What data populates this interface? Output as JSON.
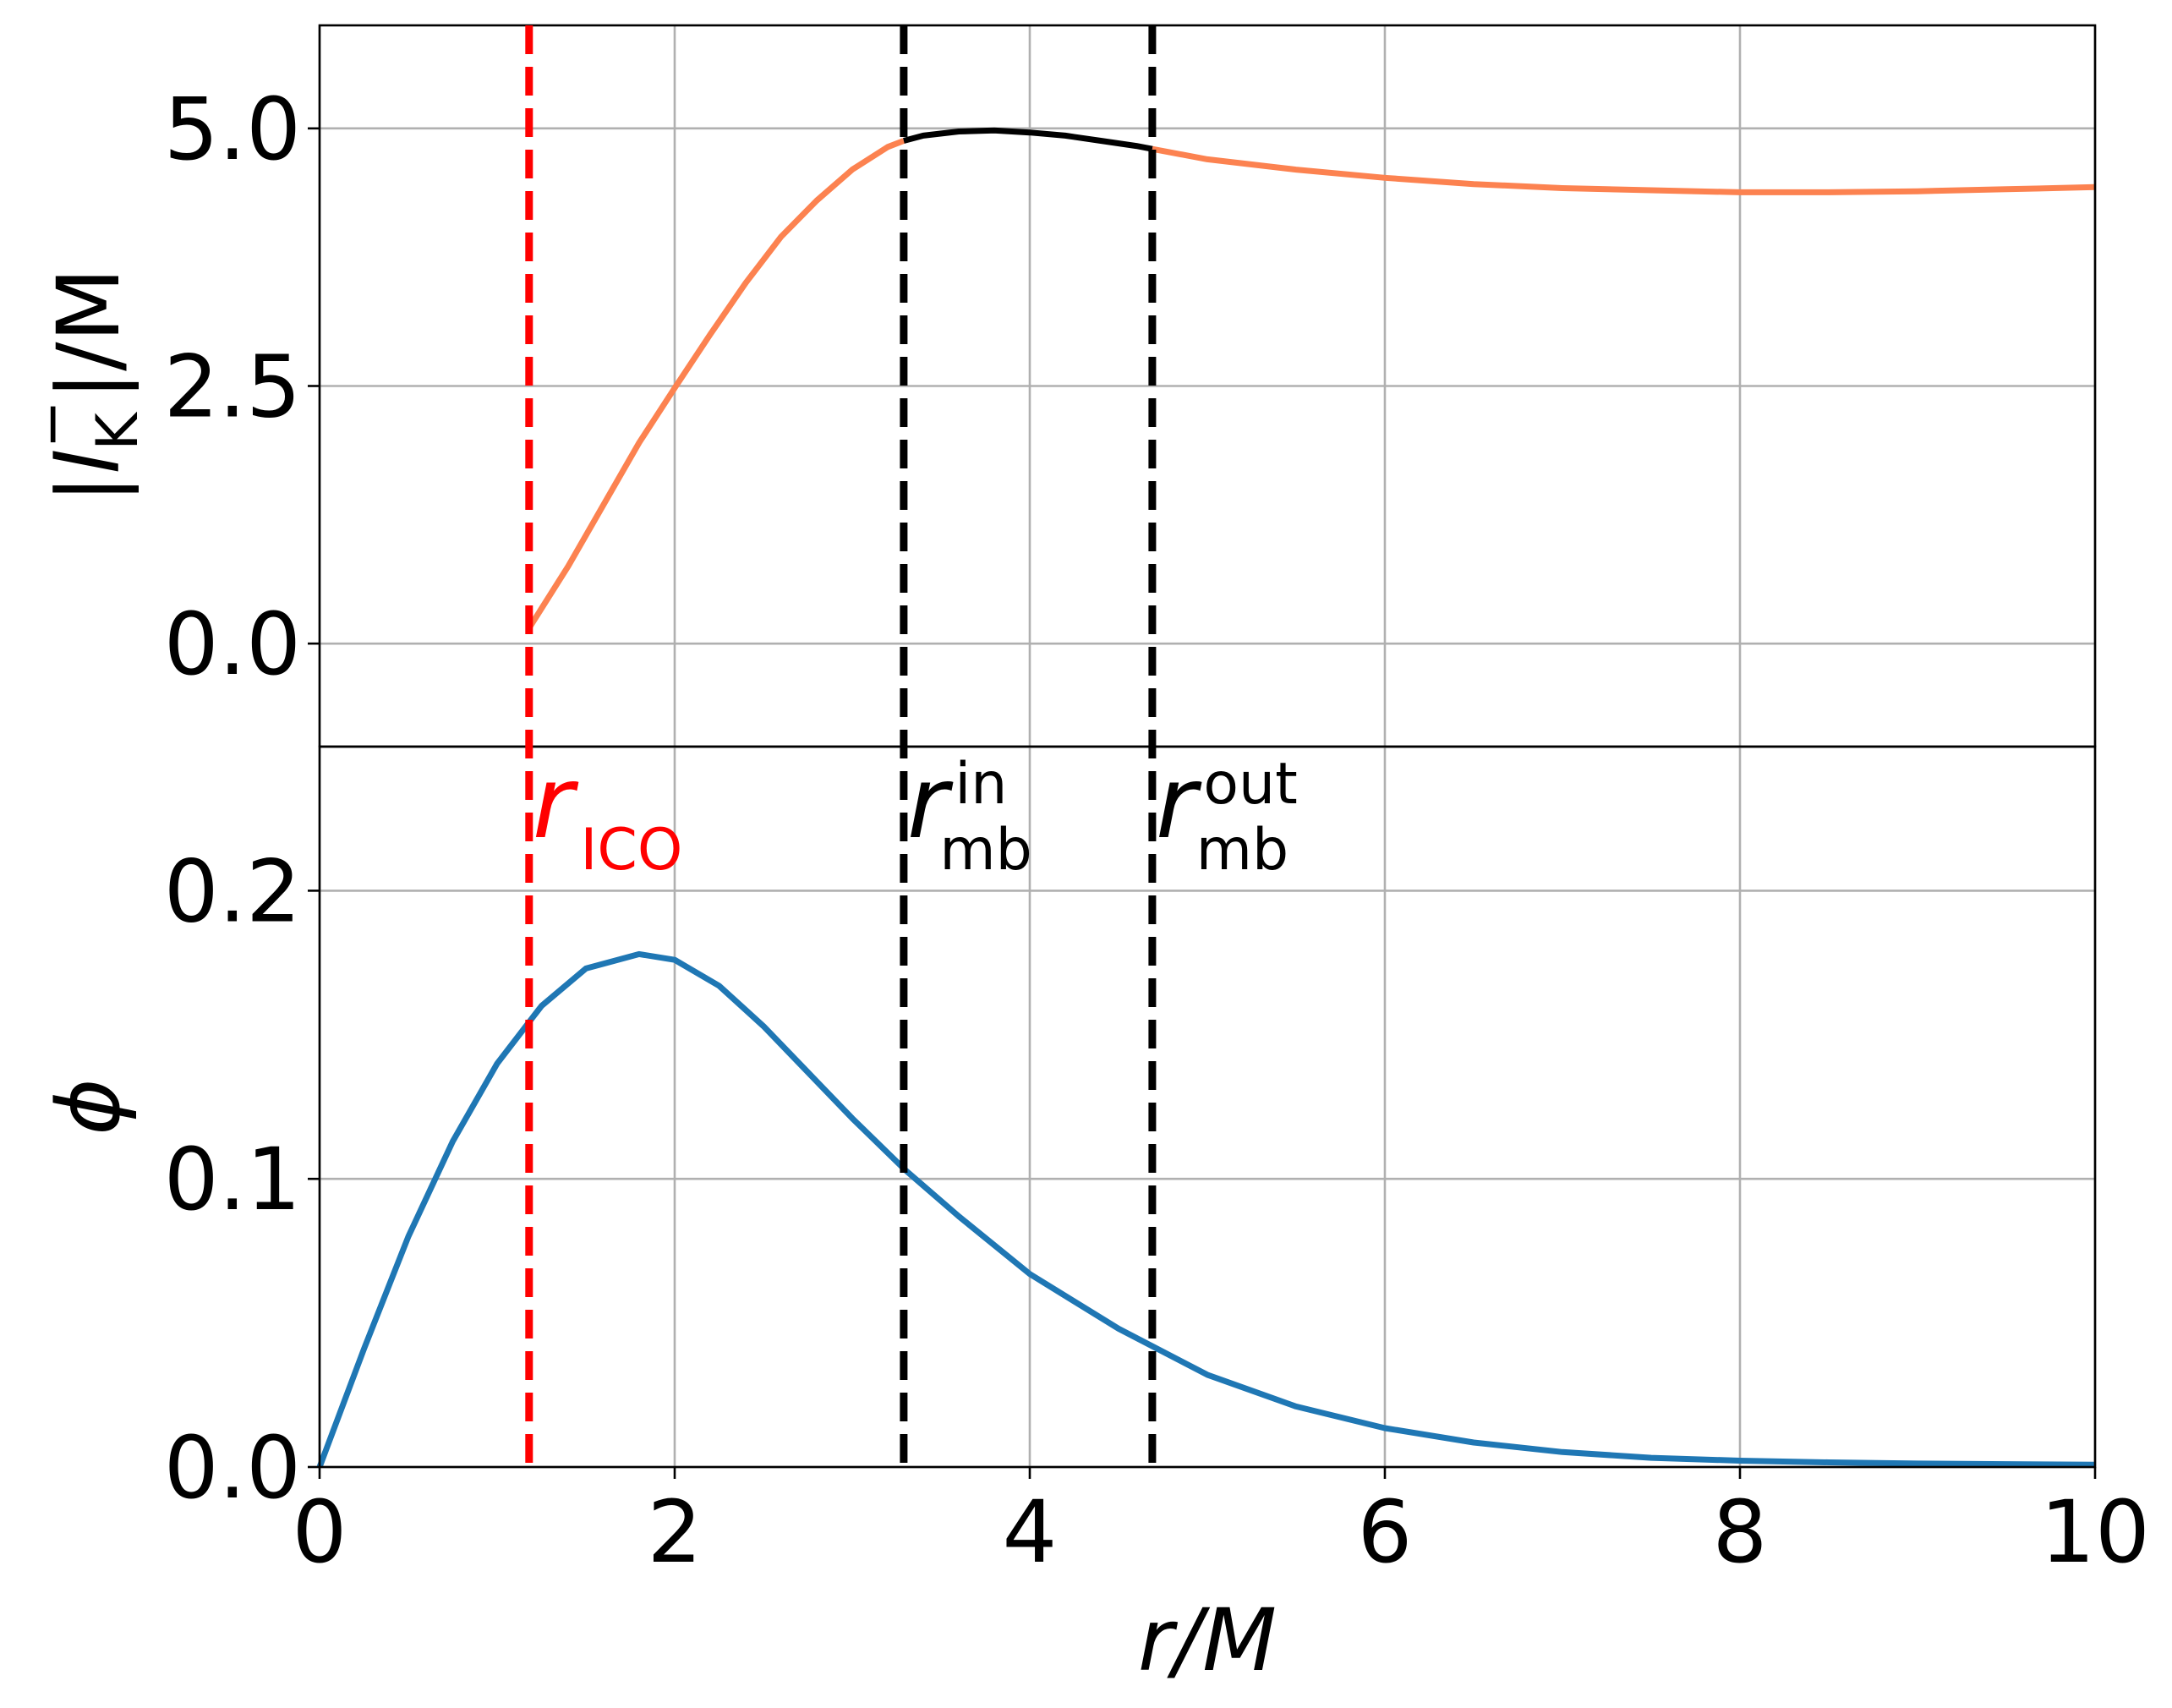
{
  "chart_data": [
    {
      "panel": "top",
      "type": "line",
      "ylabel": "|l_K^-|/M",
      "ylabel_parts": {
        "left_bar": "|",
        "symbol": "l",
        "sub": "K",
        "sup": "−",
        "right": "|/M"
      },
      "ylim": [
        -1.0,
        6.0
      ],
      "xlim": [
        0,
        10
      ],
      "yticks": [
        0.0,
        2.5,
        5.0
      ],
      "ytick_labels": [
        "0.0",
        "2.5",
        "5.0"
      ],
      "grid": true,
      "series": [
        {
          "color": "#fc8250",
          "x": [
            1.18,
            1.4,
            1.6,
            1.8,
            2.0,
            2.2,
            2.4,
            2.6,
            2.8,
            3.0,
            3.2,
            3.29
          ],
          "y": [
            0.15,
            0.75,
            1.35,
            1.95,
            2.48,
            3.0,
            3.5,
            3.95,
            4.3,
            4.6,
            4.82,
            4.88
          ]
        },
        {
          "color": "#000000",
          "x": [
            3.29,
            3.4,
            3.6,
            3.8,
            4.0,
            4.2,
            4.4,
            4.6,
            4.69
          ],
          "y": [
            4.88,
            4.93,
            4.97,
            4.98,
            4.96,
            4.93,
            4.88,
            4.83,
            4.8
          ]
        },
        {
          "color": "#fc8250",
          "x": [
            4.69,
            5.0,
            5.5,
            6.0,
            6.5,
            7.0,
            7.5,
            8.0,
            8.5,
            9.0,
            9.5,
            10.0
          ],
          "y": [
            4.8,
            4.7,
            4.6,
            4.52,
            4.46,
            4.42,
            4.4,
            4.38,
            4.38,
            4.39,
            4.41,
            4.43
          ]
        }
      ]
    },
    {
      "panel": "bottom",
      "type": "line",
      "xlabel": "r/M",
      "ylabel": "ϕ",
      "xlim": [
        0,
        10
      ],
      "ylim": [
        0.0,
        0.25
      ],
      "xticks": [
        0,
        2,
        4,
        6,
        8,
        10
      ],
      "xtick_labels": [
        "0",
        "2",
        "4",
        "6",
        "8",
        "10"
      ],
      "yticks": [
        0.0,
        0.1,
        0.2
      ],
      "ytick_labels": [
        "0.0",
        "0.1",
        "0.2"
      ],
      "grid": true,
      "series": [
        {
          "color": "#1f77b4",
          "x": [
            0,
            0.25,
            0.5,
            0.75,
            1.0,
            1.25,
            1.5,
            1.8,
            2.0,
            2.25,
            2.5,
            2.75,
            3.0,
            3.3,
            3.6,
            4.0,
            4.5,
            5.0,
            5.5,
            6.0,
            6.5,
            7.0,
            7.5,
            8.0,
            8.5,
            9.0,
            9.5,
            10.0
          ],
          "y": [
            0.0,
            0.041,
            0.08,
            0.113,
            0.14,
            0.16,
            0.173,
            0.178,
            0.176,
            0.167,
            0.153,
            0.137,
            0.121,
            0.103,
            0.087,
            0.067,
            0.048,
            0.032,
            0.021,
            0.0135,
            0.0085,
            0.0052,
            0.0032,
            0.0022,
            0.0016,
            0.0012,
            0.001,
            0.0008
          ]
        }
      ]
    }
  ],
  "vlines": [
    {
      "x": 1.18,
      "color": "#ff0000",
      "label_main": "r",
      "label_sub": "ICO",
      "label_sup": ""
    },
    {
      "x": 3.29,
      "color": "#000000",
      "label_main": "r",
      "label_sub": "mb",
      "label_sup": "in"
    },
    {
      "x": 4.69,
      "color": "#000000",
      "label_main": "r",
      "label_sub": "mb",
      "label_sup": "out"
    }
  ]
}
